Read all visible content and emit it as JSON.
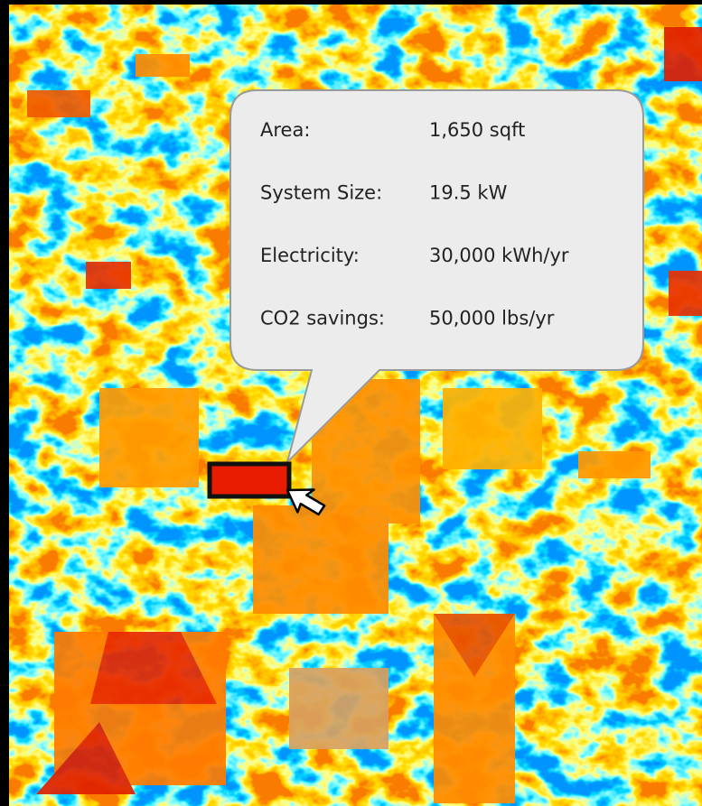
{
  "callout": {
    "rows": [
      {
        "label": "Area:",
        "value": "1,650 sqft"
      },
      {
        "label": "System Size:",
        "value": "19.5 kW"
      },
      {
        "label": "Electricity:",
        "value": "30,000 kWh/yr"
      },
      {
        "label": "CO2 savings:",
        "value": "50,000 lbs/yr"
      }
    ]
  }
}
